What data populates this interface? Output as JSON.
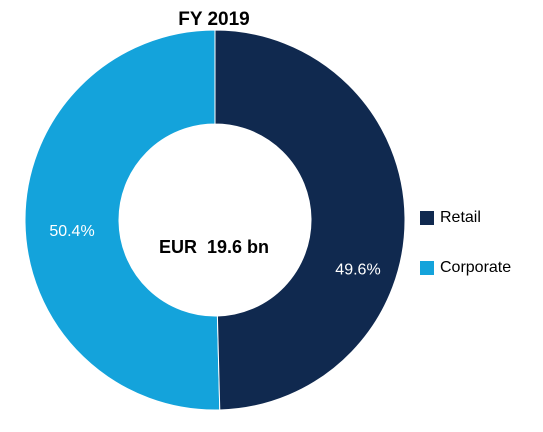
{
  "chart_data": {
    "type": "pie",
    "title": "FY 2019",
    "center_label": "EUR  19.6 bn",
    "donut": true,
    "legend": "right",
    "series": [
      {
        "name": "Retail",
        "color": "#10294f",
        "values": [
          49.6
        ],
        "value_labels": [
          "49.6%"
        ]
      },
      {
        "name": "Corporate",
        "color": "#14a3db",
        "values": [
          50.4
        ],
        "value_labels": [
          "50.4%"
        ]
      }
    ]
  }
}
